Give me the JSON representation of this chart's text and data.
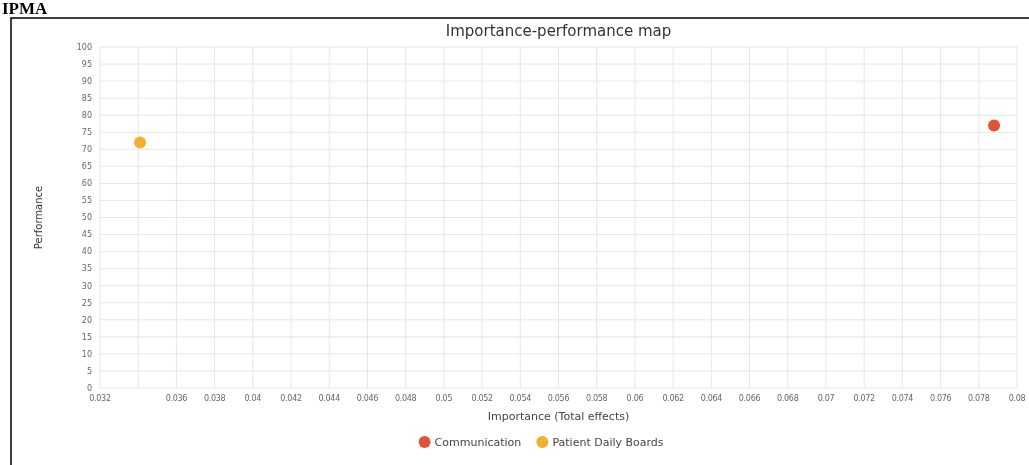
{
  "chart_data": {
    "type": "scatter",
    "title": "Importance-performance map",
    "xlabel": "Importance (Total effects)",
    "ylabel": "Performance",
    "annotations": [
      "IPMA"
    ],
    "series": [
      {
        "name": "Communication",
        "color": "#e0533a",
        "x": [
          0.0788
        ],
        "values": [
          77
        ]
      },
      {
        "name": "Patient Daily Boards",
        "color": "#f0b030",
        "x": [
          0.0341
        ],
        "values": [
          72
        ]
      }
    ],
    "xlim": [
      0.032,
      0.08
    ],
    "xticks": [
      0.032,
      {
        "value": 0.034,
        "label": null
      },
      0.036,
      0.038,
      0.04,
      0.042,
      0.044,
      0.046,
      0.048,
      0.05,
      0.052,
      0.054,
      0.056,
      0.058,
      0.06,
      0.062,
      0.064,
      0.066,
      0.068,
      0.07,
      0.072,
      0.074,
      0.076,
      0.078,
      0.08
    ],
    "ylim": [
      0,
      100
    ],
    "yticks": [
      0,
      5,
      10,
      15,
      20,
      25,
      30,
      35,
      40,
      45,
      50,
      55,
      60,
      65,
      70,
      75,
      80,
      85,
      90,
      95,
      100
    ],
    "grid": true,
    "legend": "bottom",
    "marker": "circle"
  }
}
